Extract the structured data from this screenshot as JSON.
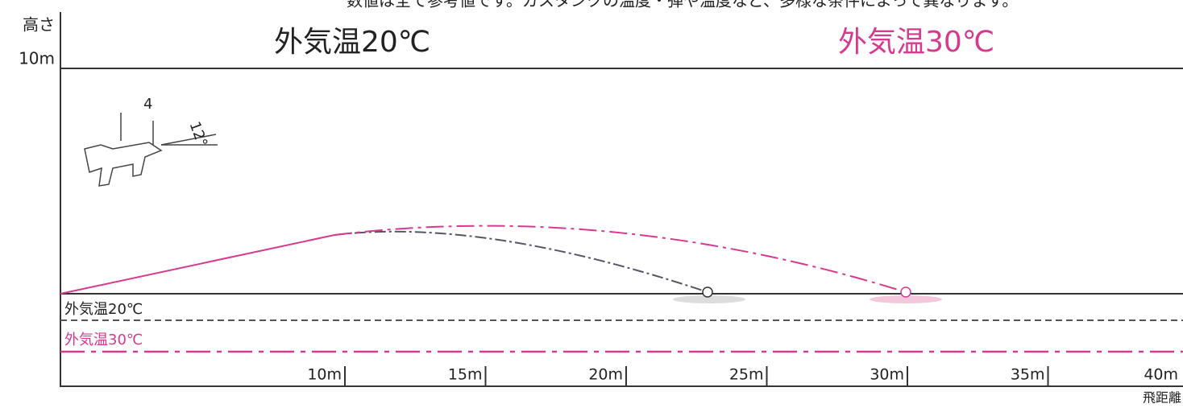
{
  "note": "数値は全て参考値です。ガスタンクの温度・弾や温度など、多様な条件によって異なります。",
  "y_axis": {
    "title": "高さ",
    "label": "10m"
  },
  "headers": [
    "外気温20℃",
    "外気温30℃"
  ],
  "gun": {
    "height": "4",
    "angle": "12°"
  },
  "legend": [
    "外気温20℃",
    "外気温30℃"
  ],
  "x_axis": {
    "labels": [
      "10m",
      "15m",
      "20m",
      "25m",
      "30m",
      "35m",
      "40m"
    ],
    "title": "飛距離"
  }
}
